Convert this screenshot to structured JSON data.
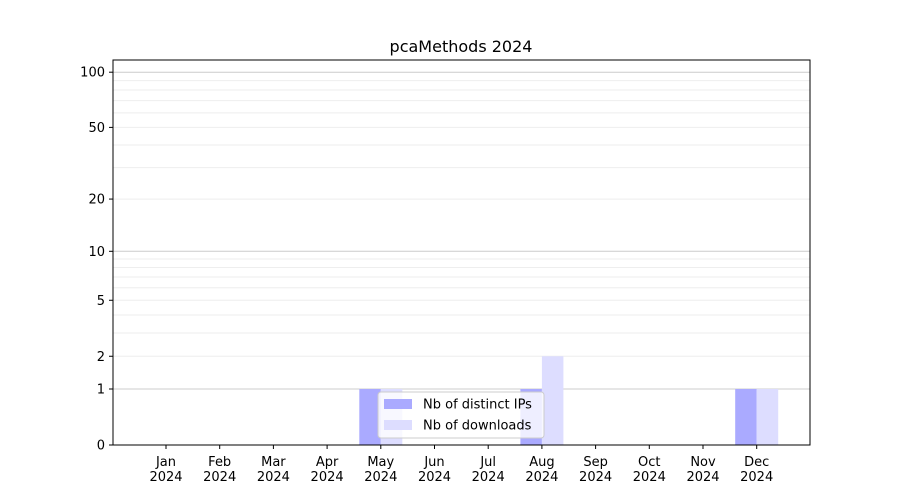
{
  "chart_data": {
    "type": "bar",
    "title": "pcaMethods 2024",
    "categories": [
      "Jan\n2024",
      "Feb\n2024",
      "Mar\n2024",
      "Apr\n2024",
      "May\n2024",
      "Jun\n2024",
      "Jul\n2024",
      "Aug\n2024",
      "Sep\n2024",
      "Oct\n2024",
      "Nov\n2024",
      "Dec\n2024"
    ],
    "series": [
      {
        "name": "Nb of distinct IPs",
        "color": "#aaaaff",
        "values": [
          0,
          0,
          0,
          0,
          1,
          0,
          0,
          1,
          0,
          0,
          0,
          1
        ]
      },
      {
        "name": "Nb of downloads",
        "color": "#ddddff",
        "values": [
          0,
          0,
          0,
          0,
          1,
          0,
          0,
          2,
          0,
          0,
          0,
          1
        ]
      }
    ],
    "yscale": "log(1+y)",
    "yticks": [
      0,
      1,
      2,
      5,
      10,
      20,
      50,
      100
    ],
    "ylim": [
      0,
      110
    ],
    "grid": true,
    "legend": "lower-center",
    "xlabel": "",
    "ylabel": ""
  }
}
